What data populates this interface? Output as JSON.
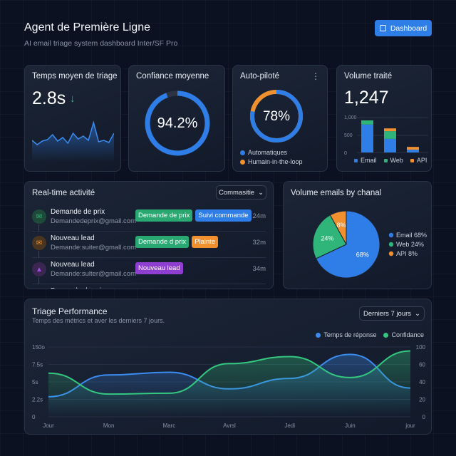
{
  "header": {
    "title": "Agent de Première Ligne",
    "subtitle": "AI email triage system dashboard Inter/SF Pro",
    "button": "Dashboard",
    "button_icon": "calendar-check-icon"
  },
  "colors": {
    "blue": "#2f7de6",
    "green": "#2fb57a",
    "orange": "#f0902e",
    "purple": "#8e3fd0"
  },
  "kpi": {
    "triage": {
      "title": "Temps moyen de triage",
      "value": "2.8s",
      "trend": "↓",
      "sparkline": [
        30,
        24,
        29,
        31,
        38,
        29,
        34,
        26,
        40,
        32,
        36,
        30,
        55,
        28,
        30,
        27,
        40
      ]
    },
    "confidence": {
      "title": "Confiance moyenne",
      "value": "94.2%",
      "percent": 94.2
    },
    "auto": {
      "title": "Auto-piloté",
      "value": "78%",
      "percent": 78,
      "menu": "⋮",
      "legend": [
        "Automatiques",
        "Humain-in-the-loop"
      ]
    },
    "volume": {
      "title": "Volume traité",
      "value": "1,247",
      "ticks": [
        "1,000",
        "500",
        "0"
      ],
      "legend": [
        "Email",
        "Web",
        "API"
      ],
      "bars": [
        {
          "email": 800,
          "web": 120,
          "api": 0
        },
        {
          "email": 390,
          "web": 220,
          "api": 80
        },
        {
          "email": 80,
          "web": 0,
          "api": 80
        }
      ]
    }
  },
  "activity": {
    "title": "Real-time activité",
    "filter": "Commasitie",
    "rows": [
      {
        "name": "Demande de prix",
        "email": "Demandedeprix@gmail.com",
        "time": "24m",
        "icon": "mail-icon",
        "tags": [
          {
            "label": "Demande de prix",
            "color": "#2aa872"
          },
          {
            "label": "Suivi commande",
            "color": "#2f7de6"
          }
        ]
      },
      {
        "name": "Nouveau lead",
        "email": "Demande:suiter@gmall.com",
        "time": "32m",
        "icon": "mail-icon",
        "tags": [
          {
            "label": "Demande d prix",
            "color": "#2aa872"
          },
          {
            "label": "Plainte",
            "color": "#f0902e"
          }
        ]
      },
      {
        "name": "Nouveau lead",
        "email": "Demande:sulter@gmail.com",
        "time": "34m",
        "icon": "alert-triangle-icon",
        "tags": [
          {
            "label": "Nouveau lead",
            "color": "#8e3fd0"
          }
        ]
      },
      {
        "name": "Demande de prix",
        "email": "",
        "time": "",
        "icon": "mail-icon",
        "tags": []
      }
    ]
  },
  "pie": {
    "title": "Volume emails by chanal",
    "chart_data": {
      "type": "pie",
      "slices": [
        {
          "label": "Email",
          "value": 68,
          "text": "68%",
          "legend": "Email 68%",
          "color": "#2f7de6"
        },
        {
          "label": "Web",
          "value": 24,
          "text": "24%",
          "legend": "Web 24%",
          "color": "#2fb57a"
        },
        {
          "label": "API",
          "value": 8,
          "text": "8%",
          "legend": "API 8%",
          "color": "#f0902e"
        }
      ]
    }
  },
  "performance": {
    "title": "Triage Performance",
    "subtitle": "Temps des métrics et aver les derniers 7 jours.",
    "range": "Derniers 7 jours",
    "chart_data": {
      "type": "area",
      "categories": [
        "Jour",
        "Mon",
        "Marc",
        "Avrsl",
        "Jedi",
        "Juin",
        "jour"
      ],
      "left_ticks": [
        "0",
        "2.2s",
        "5s",
        "7.5s",
        "150o"
      ],
      "right_ticks": [
        0,
        20,
        40,
        60,
        100
      ],
      "grid": true,
      "legend": "top-right",
      "series": [
        {
          "name": "Temps de réponse",
          "color": "#3b8cf0",
          "values": [
            23,
            48,
            51,
            32,
            44,
            83,
            33
          ]
        },
        {
          "name": "Confidance",
          "color": "#34c77f",
          "values": [
            50,
            26,
            27,
            62,
            78,
            45,
            91
          ]
        }
      ]
    }
  }
}
